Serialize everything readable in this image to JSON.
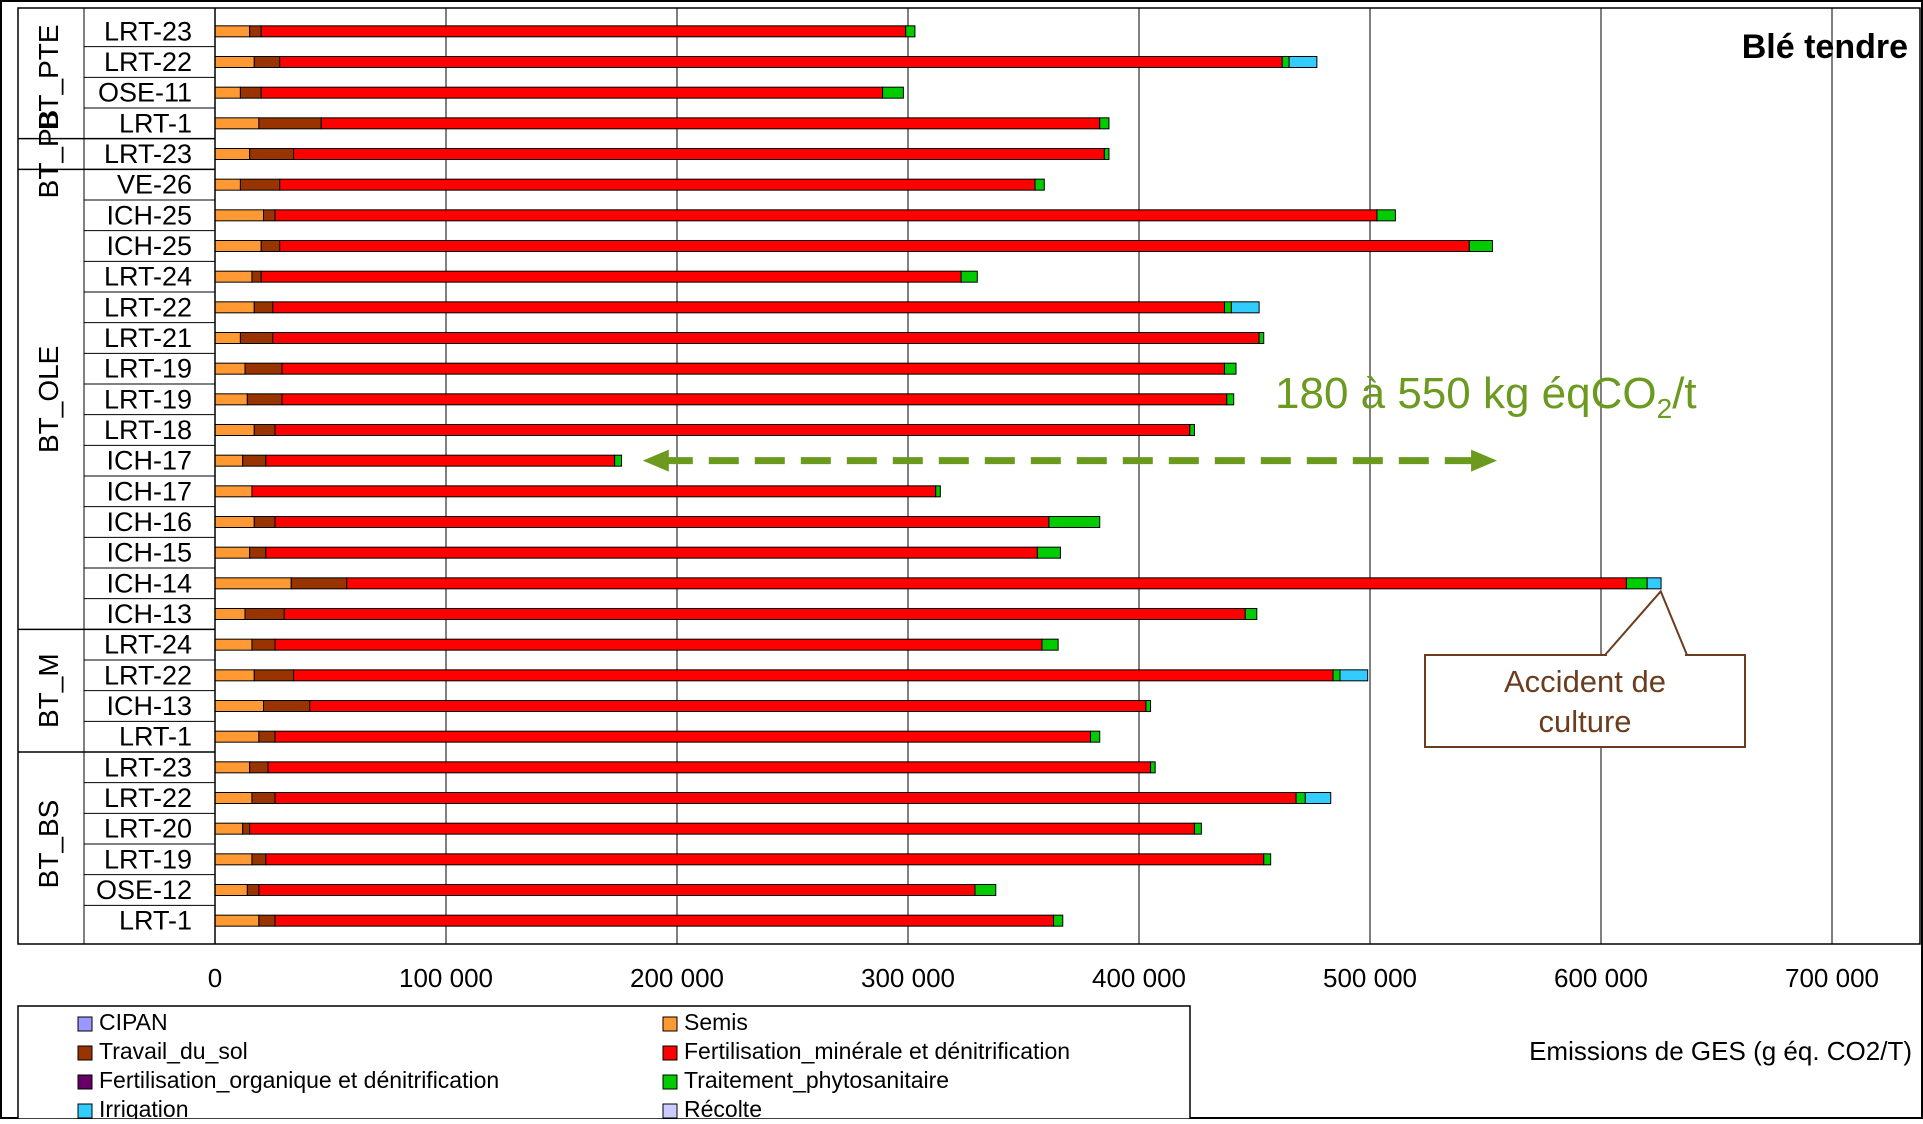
{
  "chart_data": {
    "type": "bar",
    "orientation": "horizontal",
    "stacked": true,
    "title": "Blé tendre",
    "xlabel": "Emissions de GES (g éq. CO2/T)",
    "ylabel": "",
    "xlim": [
      0,
      700000
    ],
    "x_ticks": [
      "0",
      "100 000",
      "200 000",
      "300 000",
      "400 000",
      "500 000",
      "600 000",
      "700 000"
    ],
    "x_tick_values": [
      0,
      100000,
      200000,
      300000,
      400000,
      500000,
      600000,
      700000
    ],
    "grid": "vertical",
    "legend_position": "bottom",
    "groups": [
      {
        "name": "BT_PTE",
        "categories": [
          "LRT-23",
          "LRT-22",
          "OSE-11",
          "LRT-1"
        ]
      },
      {
        "name": "BT_PB",
        "categories": [
          "LRT-23"
        ]
      },
      {
        "name": "BT_OLE",
        "categories": [
          "VE-26",
          "ICH-25",
          "ICH-25",
          "LRT-24",
          "LRT-22",
          "LRT-21",
          "LRT-19",
          "LRT-19",
          "LRT-18",
          "ICH-17",
          "ICH-17",
          "ICH-16",
          "ICH-15",
          "ICH-14",
          "ICH-13"
        ]
      },
      {
        "name": "BT_M",
        "categories": [
          "LRT-24",
          "LRT-22",
          "ICH-13",
          "LRT-1"
        ]
      },
      {
        "name": "BT_BS",
        "categories": [
          "LRT-23",
          "LRT-22",
          "LRT-20",
          "LRT-19",
          "OSE-12",
          "LRT-1"
        ]
      }
    ],
    "categories": [
      "LRT-23",
      "LRT-22",
      "OSE-11",
      "LRT-1",
      "LRT-23",
      "VE-26",
      "ICH-25",
      "ICH-25",
      "LRT-24",
      "LRT-22",
      "LRT-21",
      "LRT-19",
      "LRT-19",
      "LRT-18",
      "ICH-17",
      "ICH-17",
      "ICH-16",
      "ICH-15",
      "ICH-14",
      "ICH-13",
      "LRT-24",
      "LRT-22",
      "ICH-13",
      "LRT-1",
      "LRT-23",
      "LRT-22",
      "LRT-20",
      "LRT-19",
      "OSE-12",
      "LRT-1"
    ],
    "series": [
      {
        "name": "CIPAN",
        "color": "#9999ff",
        "values": [
          0,
          0,
          0,
          0,
          0,
          0,
          0,
          0,
          0,
          0,
          0,
          0,
          0,
          0,
          0,
          0,
          0,
          0,
          0,
          0,
          0,
          0,
          0,
          0,
          0,
          0,
          0,
          0,
          0,
          0
        ]
      },
      {
        "name": "Semis",
        "color": "#ff9933",
        "values": [
          15000,
          17000,
          11000,
          19000,
          15000,
          11000,
          21000,
          20000,
          16000,
          17000,
          11000,
          13000,
          14000,
          17000,
          12000,
          16000,
          17000,
          15000,
          33000,
          13000,
          16000,
          17000,
          21000,
          19000,
          15000,
          16000,
          12000,
          16000,
          14000,
          19000
        ]
      },
      {
        "name": "Travail_du_sol",
        "color": "#993300",
        "values": [
          5000,
          11000,
          9000,
          27000,
          19000,
          17000,
          5000,
          8000,
          4000,
          8000,
          14000,
          16000,
          15000,
          9000,
          10000,
          0,
          9000,
          7000,
          24000,
          17000,
          10000,
          17000,
          20000,
          7000,
          8000,
          10000,
          3000,
          6000,
          5000,
          7000
        ]
      },
      {
        "name": "Fertilisation_minérale et dénitrification",
        "color": "#ff0000",
        "values": [
          279000,
          434000,
          269000,
          337000,
          351000,
          327000,
          477000,
          515000,
          303000,
          412000,
          427000,
          408000,
          409000,
          396000,
          151000,
          296000,
          335000,
          334000,
          554000,
          416000,
          332000,
          450000,
          362000,
          353000,
          382000,
          442000,
          409000,
          432000,
          310000,
          337000
        ]
      },
      {
        "name": "Fertilisation_organique et dénitrification",
        "color": "#660066",
        "values": [
          0,
          0,
          0,
          0,
          0,
          0,
          0,
          0,
          0,
          0,
          0,
          0,
          0,
          0,
          0,
          0,
          0,
          0,
          0,
          0,
          0,
          0,
          0,
          0,
          0,
          0,
          0,
          0,
          0,
          0
        ]
      },
      {
        "name": "Traitement_phytosanitaire",
        "color": "#00cc00",
        "values": [
          4000,
          3000,
          9000,
          4000,
          2000,
          4000,
          8000,
          10000,
          7000,
          3000,
          2000,
          5000,
          3000,
          2000,
          3000,
          2000,
          22000,
          10000,
          9000,
          5000,
          7000,
          3000,
          2000,
          4000,
          2000,
          4000,
          3000,
          3000,
          9000,
          4000
        ]
      },
      {
        "name": "Irrigation",
        "color": "#33ccff",
        "values": [
          0,
          12000,
          0,
          0,
          0,
          0,
          0,
          0,
          0,
          12000,
          0,
          0,
          0,
          0,
          0,
          0,
          0,
          0,
          6000,
          0,
          0,
          12000,
          0,
          0,
          0,
          11000,
          0,
          0,
          0,
          0
        ]
      },
      {
        "name": "Récolte",
        "color": "#ccccff",
        "values": [
          0,
          0,
          0,
          0,
          0,
          0,
          0,
          0,
          0,
          0,
          0,
          0,
          0,
          0,
          0,
          0,
          0,
          0,
          0,
          0,
          0,
          0,
          0,
          0,
          0,
          0,
          0,
          0,
          0,
          0
        ]
      }
    ],
    "annotations": {
      "range_text_main": "180 à 550 kg éqCO",
      "range_text_sub": "2",
      "range_text_tail": "/t",
      "range_arrow_from": 180000,
      "range_arrow_to": 555000,
      "range_arrow_row": 14,
      "range_color": "#6b9a1f",
      "callout_line1": "Accident de",
      "callout_line2": "culture",
      "callout_target_x": 625000,
      "callout_target_row": 18,
      "callout_color": "#6b3d1e"
    }
  }
}
